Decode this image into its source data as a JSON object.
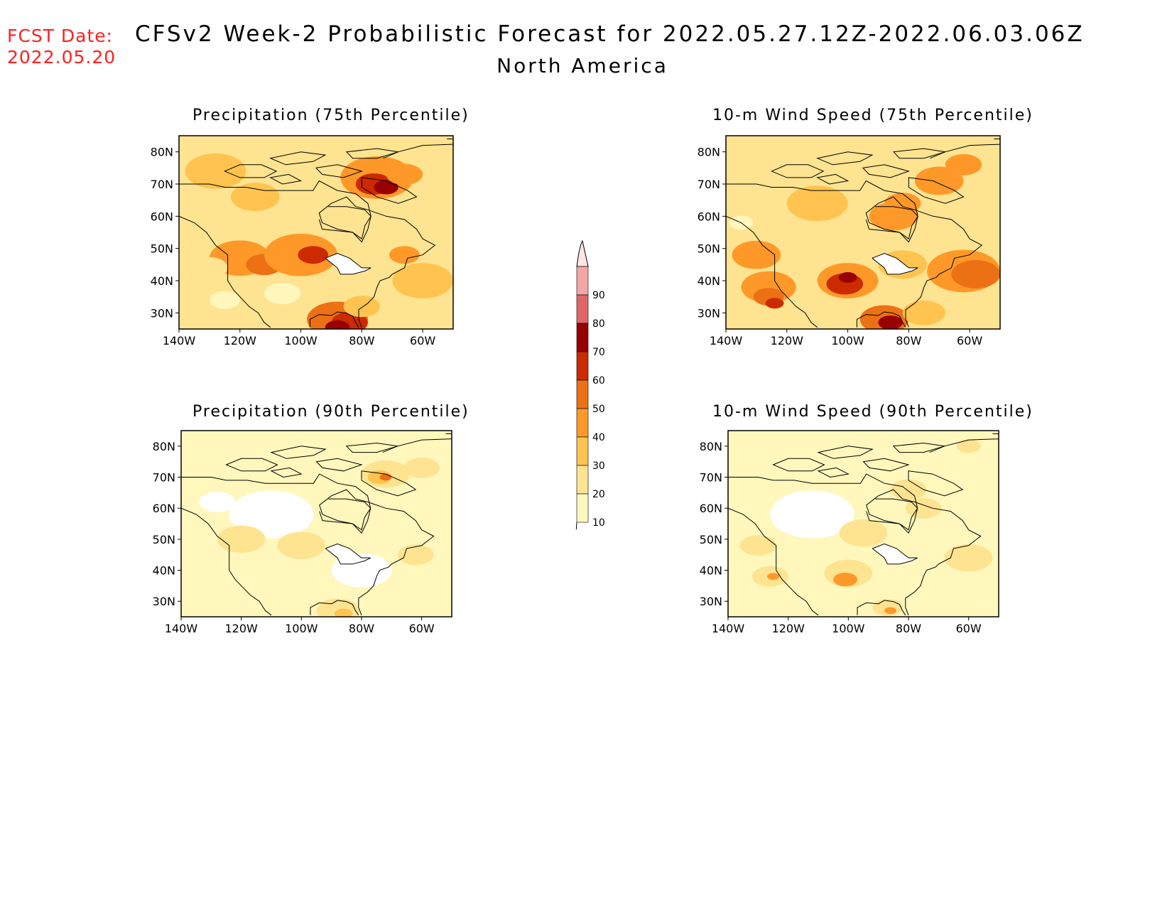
{
  "header": {
    "fcst_label": "FCST Date:",
    "fcst_date": "2022.05.20",
    "title": "CFSv2 Week-2 Probabilistic Forecast for 2022.05.27.12Z-2022.06.03.06Z",
    "subtitle": "North America"
  },
  "panels": [
    {
      "title": "Precipitation (75th Percentile)"
    },
    {
      "title": "10-m Wind Speed (75th Percentile)"
    },
    {
      "title": "Precipitation (90th Percentile)"
    },
    {
      "title": "10-m Wind Speed (90th Percentile)"
    }
  ],
  "axes": {
    "lat_labels": [
      "80N",
      "70N",
      "60N",
      "50N",
      "40N",
      "30N"
    ],
    "lat_values": [
      80,
      70,
      60,
      50,
      40,
      30
    ],
    "lon_labels": [
      "140W",
      "120W",
      "100W",
      "80W",
      "60W"
    ],
    "lon_values": [
      -140,
      -120,
      -100,
      -80,
      -60
    ],
    "lat_range": [
      25,
      85
    ],
    "lon_range": [
      -140,
      -50
    ]
  },
  "colorbar": {
    "levels": [
      "10",
      "20",
      "30",
      "40",
      "50",
      "60",
      "70",
      "80",
      "90"
    ],
    "colors": [
      "#fff7bc",
      "#fee391",
      "#fec44f",
      "#fe9929",
      "#ec7014",
      "#cc2a00",
      "#990000",
      "#e06666",
      "#f4a6a6",
      "#ffe6e6"
    ]
  }
}
